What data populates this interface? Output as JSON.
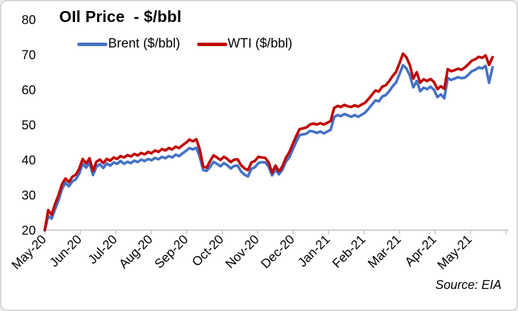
{
  "chart": {
    "title": "OIl Price  - $/bbl",
    "source_note": "Source: EIA",
    "legend": [
      {
        "label": "Brent ($/bbl)",
        "color": "#4472C4"
      },
      {
        "label": "WTI ($/bbl)",
        "color": "#C00000"
      }
    ],
    "axis_color": "#BFBFBF"
  },
  "chart_data": {
    "type": "line",
    "title": "OIl Price  - $/bbl",
    "xlabel": "",
    "ylabel": "",
    "ylim": [
      20,
      80
    ],
    "y_ticks": [
      20,
      30,
      40,
      50,
      60,
      70,
      80
    ],
    "grid": false,
    "legend_position": "top",
    "x_tick_labels": [
      "May-20",
      "Jun-20",
      "Jul-20",
      "Aug-20",
      "Sep-20",
      "Oct-20",
      "Nov-20",
      "Dec-20",
      "Jan-21",
      "Feb-21",
      "Mar-21",
      "Apr-21",
      "May-21"
    ],
    "series": [
      {
        "name": "Brent ($/bbl)",
        "color": "#4472C4",
        "values": [
          19.8,
          23.9,
          23.2,
          25.9,
          28.4,
          31.6,
          33.4,
          32.4,
          33.8,
          34.4,
          36.0,
          38.8,
          37.7,
          39.1,
          35.6,
          38.0,
          38.7,
          37.6,
          38.9,
          38.3,
          39.2,
          38.8,
          39.6,
          38.8,
          39.4,
          39.0,
          39.7,
          39.3,
          40.0,
          39.6,
          40.2,
          39.8,
          40.5,
          40.1,
          40.8,
          40.4,
          41.0,
          40.6,
          41.4,
          41.0,
          41.8,
          42.5,
          43.3,
          42.9,
          43.4,
          40.8,
          37.0,
          36.8,
          37.9,
          39.4,
          38.8,
          38.1,
          39.0,
          38.4,
          37.5,
          38.2,
          38.3,
          36.6,
          35.7,
          35.2,
          37.4,
          37.8,
          39.0,
          39.3,
          39.2,
          38.0,
          35.5,
          37.2,
          35.8,
          37.1,
          39.4,
          40.6,
          42.9,
          45.0,
          47.0,
          47.2,
          47.4,
          48.2,
          48.0,
          47.6,
          48.0,
          47.5,
          48.0,
          48.5,
          52.1,
          52.7,
          52.4,
          53.0,
          52.6,
          52.2,
          52.7,
          52.2,
          52.8,
          53.4,
          54.5,
          55.7,
          56.9,
          56.6,
          58.0,
          58.4,
          59.5,
          60.9,
          62.0,
          64.4,
          66.9,
          66.0,
          64.0,
          60.6,
          62.4,
          59.5,
          60.5,
          60.1,
          60.8,
          59.9,
          57.8,
          58.6,
          57.5,
          63.3,
          62.7,
          63.1,
          63.5,
          63.2,
          63.4,
          64.2,
          65.2,
          65.6,
          66.3,
          66.0,
          66.7,
          61.9,
          66.3
        ]
      },
      {
        "name": "WTI ($/bbl)",
        "color": "#C00000",
        "values": [
          20.0,
          25.6,
          24.3,
          27.4,
          29.9,
          33.0,
          34.6,
          33.6,
          35.1,
          35.7,
          37.4,
          40.2,
          38.9,
          40.4,
          36.8,
          39.4,
          40.0,
          39.0,
          40.2,
          39.7,
          40.6,
          40.2,
          41.0,
          40.6,
          41.3,
          40.9,
          41.6,
          41.2,
          41.9,
          41.5,
          42.2,
          41.8,
          42.6,
          42.2,
          43.0,
          42.6,
          43.3,
          42.9,
          43.7,
          43.3,
          44.1,
          44.8,
          45.7,
          45.2,
          45.8,
          42.9,
          38.0,
          37.7,
          39.6,
          41.2,
          40.6,
          39.9,
          40.8,
          40.2,
          39.3,
          40.0,
          40.1,
          38.4,
          37.5,
          37.0,
          39.2,
          39.6,
          40.8,
          40.6,
          40.5,
          39.2,
          36.3,
          38.3,
          36.6,
          38.1,
          40.5,
          42.1,
          44.5,
          46.7,
          48.7,
          48.9,
          49.2,
          50.0,
          50.3,
          50.0,
          50.4,
          50.0,
          50.5,
          51.0,
          54.7,
          55.3,
          55.0,
          55.6,
          55.2,
          55.0,
          55.5,
          55.1,
          55.7,
          56.2,
          57.3,
          58.5,
          59.7,
          59.4,
          60.8,
          61.2,
          62.4,
          63.8,
          65.0,
          67.5,
          70.2,
          69.2,
          66.9,
          63.1,
          64.9,
          61.9,
          62.9,
          62.4,
          63.0,
          62.1,
          60.1,
          60.9,
          60.2,
          65.8,
          65.2,
          65.5,
          65.9,
          65.6,
          66.3,
          67.2,
          68.2,
          68.6,
          69.3,
          69.0,
          69.7,
          67.0,
          69.2
        ]
      }
    ]
  }
}
